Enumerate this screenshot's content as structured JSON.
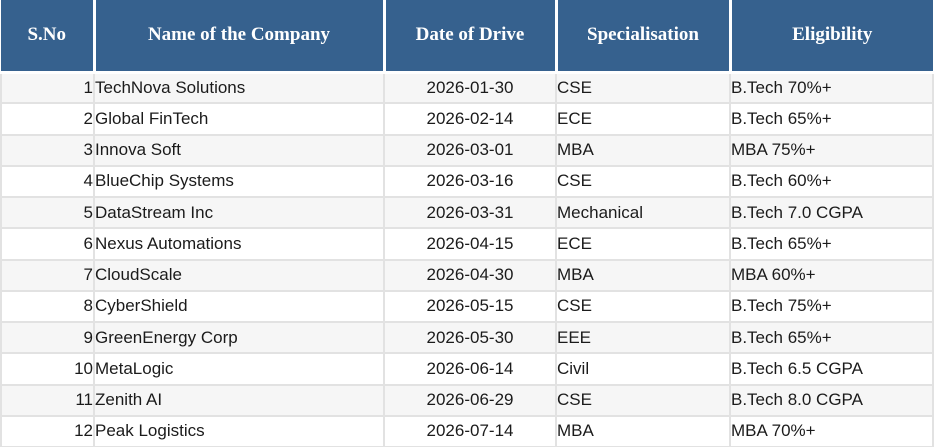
{
  "chart_data": {
    "type": "table",
    "columns": [
      "S.No",
      "Name of the Company",
      "Date of Drive",
      "Specialisation",
      "Eligibility"
    ],
    "rows": [
      [
        "1",
        "TechNova Solutions",
        "2026-01-30",
        "CSE",
        "B.Tech 70%+"
      ],
      [
        "2",
        "Global FinTech",
        "2026-02-14",
        "ECE",
        "B.Tech 65%+"
      ],
      [
        "3",
        "Innova Soft",
        "2026-03-01",
        "MBA",
        "MBA 75%+"
      ],
      [
        "4",
        "BlueChip Systems",
        "2026-03-16",
        "CSE",
        "B.Tech 60%+"
      ],
      [
        "5",
        "DataStream Inc",
        "2026-03-31",
        "Mechanical",
        "B.Tech 7.0 CGPA"
      ],
      [
        "6",
        "Nexus Automations",
        "2026-04-15",
        "ECE",
        "B.Tech 65%+"
      ],
      [
        "7",
        "CloudScale",
        "2026-04-30",
        "MBA",
        "MBA 60%+"
      ],
      [
        "8",
        "CyberShield",
        "2026-05-15",
        "CSE",
        "B.Tech 75%+"
      ],
      [
        "9",
        "GreenEnergy Corp",
        "2026-05-30",
        "EEE",
        "B.Tech 65%+"
      ],
      [
        "10",
        "MetaLogic",
        "2026-06-14",
        "Civil",
        "B.Tech 6.5 CGPA"
      ],
      [
        "11",
        "Zenith AI",
        "2026-06-29",
        "CSE",
        "B.Tech 8.0 CGPA"
      ],
      [
        "12",
        "Peak Logistics",
        "2026-07-14",
        "MBA",
        "MBA 70%+"
      ]
    ]
  },
  "colors": {
    "header_bg": "#36618E",
    "header_text": "#FFFFFF",
    "row_odd_bg": "#F6F6F6",
    "row_even_bg": "#FFFFFF",
    "grid_line": "#E2E2E2",
    "body_text": "#1B1B1B"
  }
}
